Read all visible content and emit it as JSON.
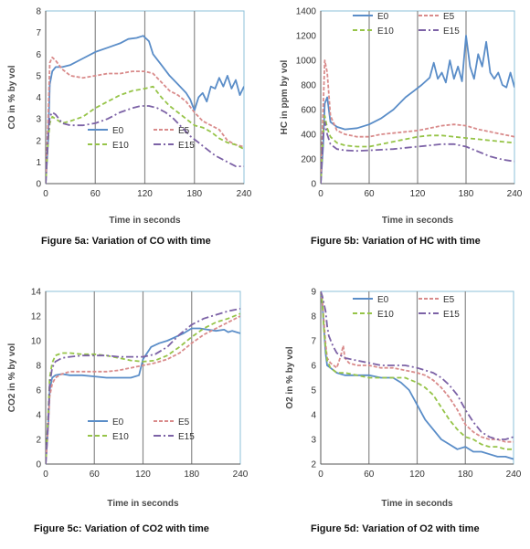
{
  "colors": {
    "E0": "#5a8dc8",
    "E5": "#d98b8b",
    "E10": "#96c448",
    "E15": "#7c62a6",
    "frame": "#8dc0d8",
    "grid": "#8a8a8a"
  },
  "chart_data": [
    {
      "id": "a",
      "type": "line",
      "title": "Figure 5a: Variation of CO with time",
      "xlabel": "Time in seconds",
      "ylabel": "CO in % by vol",
      "xlim": [
        0,
        240
      ],
      "ylim": [
        0,
        8
      ],
      "xticks": [
        "0",
        "60",
        "120",
        "180",
        "240"
      ],
      "yticks": [
        "0",
        "1",
        "2",
        "3",
        "4",
        "5",
        "6",
        "7",
        "8"
      ],
      "vgrid": [
        60,
        120,
        180
      ],
      "legend": [
        "E0",
        "E5",
        "E10",
        "E15"
      ],
      "series": [
        {
          "name": "E0",
          "dash": "",
          "x": [
            0,
            3,
            5,
            8,
            12,
            20,
            30,
            45,
            60,
            75,
            90,
            100,
            110,
            118,
            125,
            130,
            140,
            150,
            160,
            170,
            175,
            178,
            180,
            185,
            190,
            195,
            200,
            205,
            210,
            215,
            220,
            225,
            230,
            235,
            240
          ],
          "y": [
            0,
            2,
            4.6,
            5.2,
            5.4,
            5.4,
            5.5,
            5.8,
            6.1,
            6.3,
            6.5,
            6.7,
            6.75,
            6.85,
            6.6,
            6.0,
            5.5,
            5.0,
            4.6,
            4.2,
            3.9,
            3.6,
            3.4,
            4.0,
            4.2,
            3.8,
            4.5,
            4.4,
            4.9,
            4.5,
            5.0,
            4.4,
            4.8,
            4.1,
            4.5
          ]
        },
        {
          "name": "E5",
          "dash": "4,2",
          "x": [
            0,
            3,
            5,
            8,
            12,
            20,
            30,
            45,
            60,
            75,
            90,
            105,
            120,
            130,
            140,
            150,
            160,
            170,
            180,
            190,
            200,
            210,
            220,
            230,
            240
          ],
          "y": [
            0,
            3,
            5.6,
            5.85,
            5.7,
            5.3,
            5.0,
            4.9,
            5.0,
            5.1,
            5.1,
            5.2,
            5.2,
            5.1,
            4.7,
            4.3,
            4.1,
            3.8,
            3.3,
            2.9,
            2.7,
            2.5,
            2.0,
            1.8,
            1.7
          ]
        },
        {
          "name": "E10",
          "dash": "5,3",
          "x": [
            0,
            3,
            5,
            8,
            12,
            20,
            30,
            45,
            60,
            75,
            90,
            105,
            120,
            130,
            140,
            150,
            160,
            170,
            180,
            190,
            200,
            210,
            220,
            230,
            240
          ],
          "y": [
            0,
            2,
            2.8,
            3.1,
            3.0,
            2.8,
            2.9,
            3.1,
            3.5,
            3.8,
            4.1,
            4.3,
            4.4,
            4.5,
            4.0,
            3.6,
            3.3,
            3.0,
            2.7,
            2.6,
            2.4,
            2.1,
            1.9,
            1.8,
            1.6
          ]
        },
        {
          "name": "E15",
          "dash": "8,3,2,3",
          "x": [
            0,
            3,
            5,
            8,
            12,
            20,
            30,
            45,
            60,
            75,
            90,
            105,
            115,
            125,
            135,
            145,
            155,
            165,
            175,
            185,
            195,
            205,
            215,
            225,
            230,
            235,
            240
          ],
          "y": [
            0,
            2.2,
            3.1,
            3.3,
            3.2,
            2.8,
            2.7,
            2.7,
            2.8,
            3.0,
            3.3,
            3.5,
            3.6,
            3.6,
            3.5,
            3.3,
            3.0,
            2.6,
            2.2,
            1.9,
            1.6,
            1.3,
            1.1,
            0.9,
            0.8,
            0.8,
            0.8
          ]
        }
      ]
    },
    {
      "id": "b",
      "type": "line",
      "title": "Figure 5b: Variation of HC with time",
      "xlabel": "Time in seconds",
      "ylabel": "HC in ppm by vol",
      "xlim": [
        0,
        240
      ],
      "ylim": [
        0,
        1400
      ],
      "xticks": [
        "0",
        "60",
        "120",
        "180",
        "240"
      ],
      "yticks": [
        "0",
        "200",
        "400",
        "600",
        "800",
        "1000",
        "1200",
        "1400"
      ],
      "vgrid": [
        60,
        120,
        180
      ],
      "legend": [
        "E0",
        "E5",
        "E10",
        "E15"
      ],
      "series": [
        {
          "name": "E0",
          "dash": "",
          "x": [
            0,
            3,
            5,
            8,
            12,
            20,
            30,
            45,
            60,
            75,
            90,
            105,
            115,
            125,
            135,
            140,
            145,
            150,
            155,
            160,
            165,
            170,
            175,
            180,
            185,
            190,
            195,
            200,
            205,
            210,
            215,
            220,
            225,
            230,
            235,
            240
          ],
          "y": [
            0,
            300,
            650,
            700,
            500,
            460,
            440,
            450,
            480,
            530,
            600,
            700,
            750,
            800,
            860,
            980,
            850,
            900,
            820,
            1000,
            850,
            950,
            830,
            1200,
            950,
            850,
            1050,
            950,
            1150,
            900,
            850,
            900,
            800,
            780,
            900,
            780
          ]
        },
        {
          "name": "E5",
          "dash": "4,2",
          "x": [
            0,
            3,
            5,
            8,
            12,
            20,
            30,
            45,
            60,
            75,
            90,
            105,
            120,
            135,
            150,
            165,
            180,
            195,
            210,
            225,
            240
          ],
          "y": [
            0,
            600,
            1000,
            900,
            550,
            430,
            400,
            380,
            380,
            400,
            410,
            420,
            430,
            450,
            470,
            480,
            470,
            440,
            420,
            400,
            380
          ]
        },
        {
          "name": "E10",
          "dash": "5,3",
          "x": [
            0,
            3,
            5,
            8,
            12,
            20,
            30,
            45,
            60,
            75,
            90,
            105,
            120,
            135,
            150,
            165,
            180,
            195,
            210,
            225,
            240
          ],
          "y": [
            0,
            400,
            550,
            450,
            380,
            330,
            310,
            300,
            300,
            320,
            340,
            360,
            380,
            390,
            390,
            380,
            370,
            360,
            350,
            340,
            330
          ]
        },
        {
          "name": "E15",
          "dash": "8,3,2,3",
          "x": [
            0,
            3,
            5,
            8,
            12,
            20,
            30,
            45,
            60,
            75,
            90,
            105,
            120,
            135,
            150,
            165,
            180,
            195,
            210,
            225,
            240
          ],
          "y": [
            0,
            380,
            500,
            400,
            320,
            280,
            270,
            265,
            270,
            275,
            280,
            290,
            300,
            310,
            320,
            320,
            300,
            260,
            220,
            195,
            180
          ]
        }
      ]
    },
    {
      "id": "c",
      "type": "line",
      "title": "Figure 5c: Variation of CO2 with time",
      "xlabel": "Time in seconds",
      "ylabel": "CO2 in % by vol",
      "xlim": [
        0,
        240
      ],
      "ylim": [
        0,
        14
      ],
      "xticks": [
        "0",
        "60",
        "120",
        "180",
        "240"
      ],
      "yticks": [
        "0",
        "2",
        "4",
        "6",
        "8",
        "10",
        "12",
        "14"
      ],
      "vgrid": [
        60,
        120,
        180
      ],
      "legend": [
        "E0",
        "E5",
        "E10",
        "E15"
      ],
      "series": [
        {
          "name": "E0",
          "dash": "",
          "x": [
            0,
            3,
            5,
            8,
            12,
            20,
            30,
            45,
            60,
            75,
            90,
            105,
            115,
            120,
            130,
            140,
            150,
            160,
            170,
            180,
            190,
            200,
            210,
            220,
            225,
            230,
            240
          ],
          "y": [
            0,
            3,
            6,
            7.0,
            7.2,
            7.3,
            7.2,
            7.2,
            7.1,
            7.0,
            7.0,
            7.0,
            7.2,
            8.5,
            9.5,
            9.8,
            10.0,
            10.3,
            10.6,
            11.0,
            11.0,
            10.9,
            10.8,
            10.9,
            10.7,
            10.8,
            10.6
          ]
        },
        {
          "name": "E5",
          "dash": "4,2",
          "x": [
            0,
            3,
            5,
            8,
            12,
            20,
            30,
            45,
            60,
            75,
            90,
            105,
            120,
            135,
            150,
            165,
            180,
            195,
            210,
            225,
            240
          ],
          "y": [
            0,
            3,
            5.5,
            6.5,
            7.0,
            7.3,
            7.5,
            7.5,
            7.5,
            7.5,
            7.6,
            7.8,
            8.0,
            8.2,
            8.5,
            9.0,
            9.8,
            10.5,
            11.0,
            11.5,
            12.0
          ]
        },
        {
          "name": "E10",
          "dash": "5,3",
          "x": [
            0,
            3,
            5,
            8,
            12,
            20,
            30,
            45,
            60,
            75,
            90,
            105,
            120,
            135,
            150,
            165,
            180,
            195,
            210,
            225,
            240
          ],
          "y": [
            0,
            4,
            7,
            8.2,
            8.8,
            9.0,
            9.0,
            8.9,
            8.9,
            8.8,
            8.6,
            8.4,
            8.3,
            8.4,
            8.8,
            9.5,
            10.3,
            11.0,
            11.5,
            11.8,
            12.2
          ]
        },
        {
          "name": "E15",
          "dash": "8,3,2,3",
          "x": [
            0,
            3,
            5,
            8,
            12,
            20,
            30,
            45,
            60,
            75,
            90,
            105,
            120,
            135,
            150,
            165,
            180,
            195,
            210,
            225,
            240
          ],
          "y": [
            0,
            3.5,
            6.5,
            7.8,
            8.3,
            8.6,
            8.7,
            8.8,
            8.8,
            8.8,
            8.7,
            8.7,
            8.7,
            8.9,
            9.5,
            10.5,
            11.3,
            11.8,
            12.1,
            12.4,
            12.6
          ]
        }
      ]
    },
    {
      "id": "d",
      "type": "line",
      "title": "Figure 5d: Variation of O2 with time",
      "xlabel": "Time in seconds",
      "ylabel": "O2 in % by vol",
      "xlim": [
        0,
        240
      ],
      "ylim": [
        2,
        9
      ],
      "xticks": [
        "0",
        "60",
        "120",
        "180",
        "240"
      ],
      "yticks": [
        "2",
        "3",
        "4",
        "5",
        "6",
        "7",
        "8",
        "9"
      ],
      "vgrid": [
        60,
        120,
        180
      ],
      "legend": [
        "E0",
        "E5",
        "E10",
        "E15"
      ],
      "series": [
        {
          "name": "E0",
          "dash": "",
          "x": [
            0,
            2,
            4,
            6,
            8,
            12,
            20,
            30,
            45,
            60,
            75,
            90,
            100,
            110,
            120,
            130,
            140,
            150,
            160,
            170,
            180,
            190,
            200,
            210,
            220,
            230,
            240
          ],
          "y": [
            9,
            8.5,
            7.5,
            6.5,
            6.0,
            5.9,
            5.7,
            5.6,
            5.6,
            5.6,
            5.5,
            5.5,
            5.3,
            5.0,
            4.4,
            3.8,
            3.4,
            3.0,
            2.8,
            2.6,
            2.7,
            2.5,
            2.5,
            2.4,
            2.3,
            2.3,
            2.2
          ]
        },
        {
          "name": "E5",
          "dash": "4,2",
          "x": [
            0,
            2,
            4,
            6,
            8,
            12,
            20,
            25,
            28,
            30,
            35,
            45,
            60,
            75,
            90,
            105,
            120,
            130,
            140,
            150,
            160,
            170,
            180,
            190,
            200,
            210,
            220,
            230,
            240
          ],
          "y": [
            9,
            8.6,
            7.8,
            6.9,
            6.3,
            6.1,
            5.9,
            6.4,
            6.8,
            6.3,
            6.1,
            6.0,
            6.0,
            5.9,
            5.9,
            5.8,
            5.7,
            5.6,
            5.4,
            5.1,
            4.7,
            4.2,
            3.6,
            3.3,
            3.1,
            3.0,
            3.0,
            2.9,
            2.9
          ]
        },
        {
          "name": "E10",
          "dash": "5,3",
          "x": [
            0,
            2,
            4,
            6,
            8,
            12,
            20,
            30,
            45,
            60,
            75,
            90,
            105,
            120,
            130,
            140,
            150,
            160,
            170,
            180,
            190,
            200,
            210,
            220,
            230,
            240
          ],
          "y": [
            9,
            8.5,
            7.5,
            6.7,
            6.2,
            5.9,
            5.7,
            5.7,
            5.6,
            5.5,
            5.5,
            5.5,
            5.5,
            5.3,
            5.1,
            4.8,
            4.3,
            3.8,
            3.4,
            3.1,
            3.0,
            2.8,
            2.7,
            2.7,
            2.6,
            2.6
          ]
        },
        {
          "name": "E15",
          "dash": "8,3,2,3",
          "x": [
            0,
            2,
            4,
            6,
            8,
            10,
            15,
            20,
            30,
            45,
            60,
            75,
            90,
            105,
            120,
            130,
            140,
            150,
            160,
            170,
            180,
            190,
            200,
            210,
            220,
            230,
            240
          ],
          "y": [
            9,
            8.8,
            8.5,
            8.2,
            7.6,
            7.2,
            6.8,
            6.5,
            6.3,
            6.2,
            6.1,
            6.0,
            6.0,
            6.0,
            5.9,
            5.8,
            5.7,
            5.5,
            5.2,
            4.8,
            4.2,
            3.7,
            3.3,
            3.1,
            3.0,
            3.0,
            3.1
          ]
        }
      ]
    }
  ]
}
